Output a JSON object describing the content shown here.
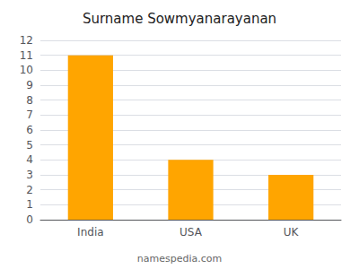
{
  "chart_data": {
    "type": "bar",
    "title": "Surname Sowmyanarayanan",
    "categories": [
      "India",
      "USA",
      "UK"
    ],
    "values": [
      11,
      4,
      3
    ],
    "color": "#FFA500",
    "ylim": [
      0,
      12
    ],
    "yticks": [
      0,
      1,
      2,
      3,
      4,
      5,
      6,
      7,
      8,
      9,
      10,
      11,
      12
    ],
    "grid": true,
    "annotations": [
      "namespedia.com"
    ]
  }
}
